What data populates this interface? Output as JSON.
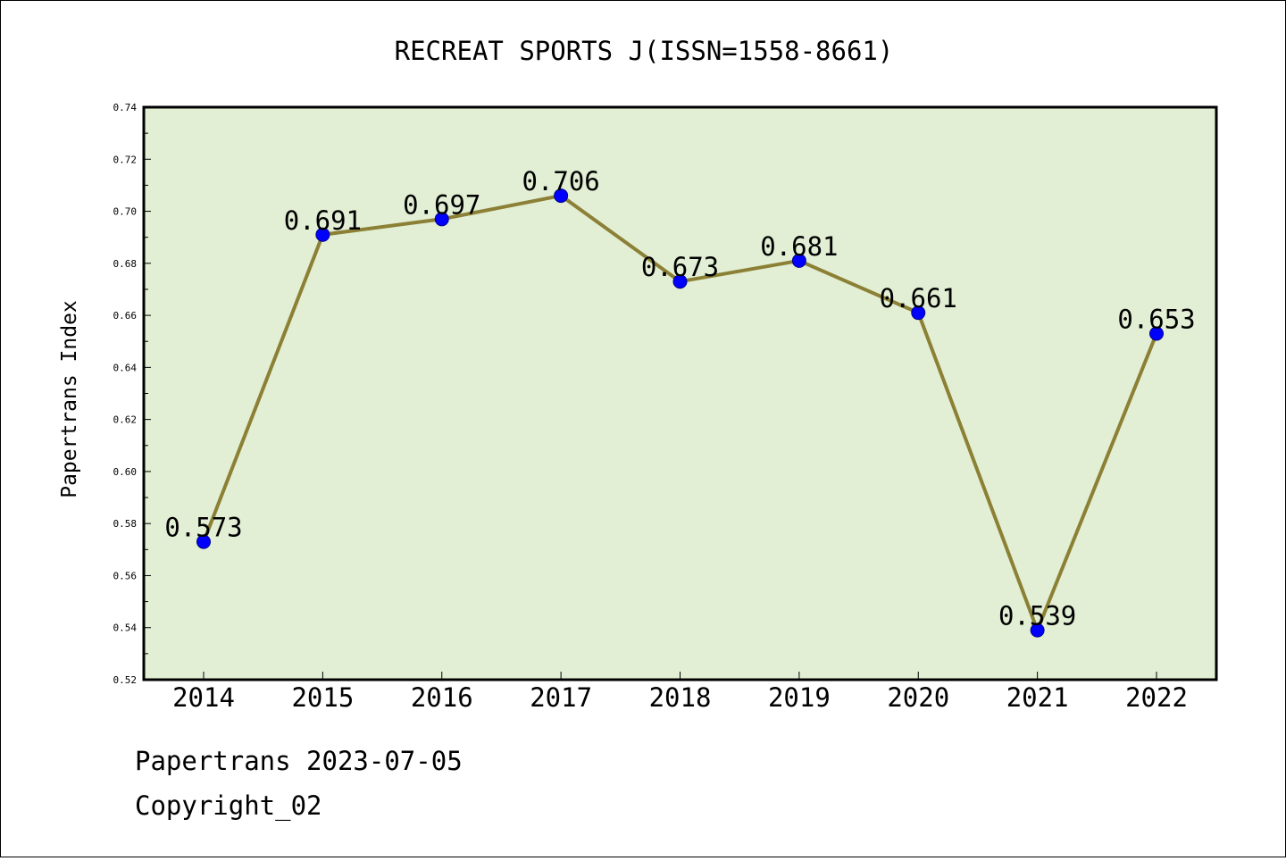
{
  "chart_data": {
    "type": "line",
    "title": "RECREAT SPORTS J(ISSN=1558-8661)",
    "xlabel": "",
    "ylabel": "Papertrans Index",
    "categories": [
      "2014",
      "2015",
      "2016",
      "2017",
      "2018",
      "2019",
      "2020",
      "2021",
      "2022"
    ],
    "series": [
      {
        "values": [
          0.573,
          0.691,
          0.697,
          0.706,
          0.673,
          0.681,
          0.661,
          0.539,
          0.653
        ],
        "labels": [
          "0.573",
          "0.691",
          "0.697",
          "0.706",
          "0.673",
          "0.681",
          "0.661",
          "0.539",
          "0.653"
        ]
      }
    ],
    "ylim": [
      0.52,
      0.74
    ],
    "yticks": [
      "0.52",
      "0.54",
      "0.56",
      "0.58",
      "0.60",
      "0.62",
      "0.64",
      "0.66",
      "0.68",
      "0.70",
      "0.72",
      "0.74"
    ],
    "grid": false,
    "legend": "none",
    "colors": {
      "plot_background": "#e2efd4",
      "line": "#8b8035",
      "marker": "#0000ff"
    }
  },
  "footer": {
    "line1": "Papertrans 2023-07-05",
    "line2": "Copyright_02"
  }
}
